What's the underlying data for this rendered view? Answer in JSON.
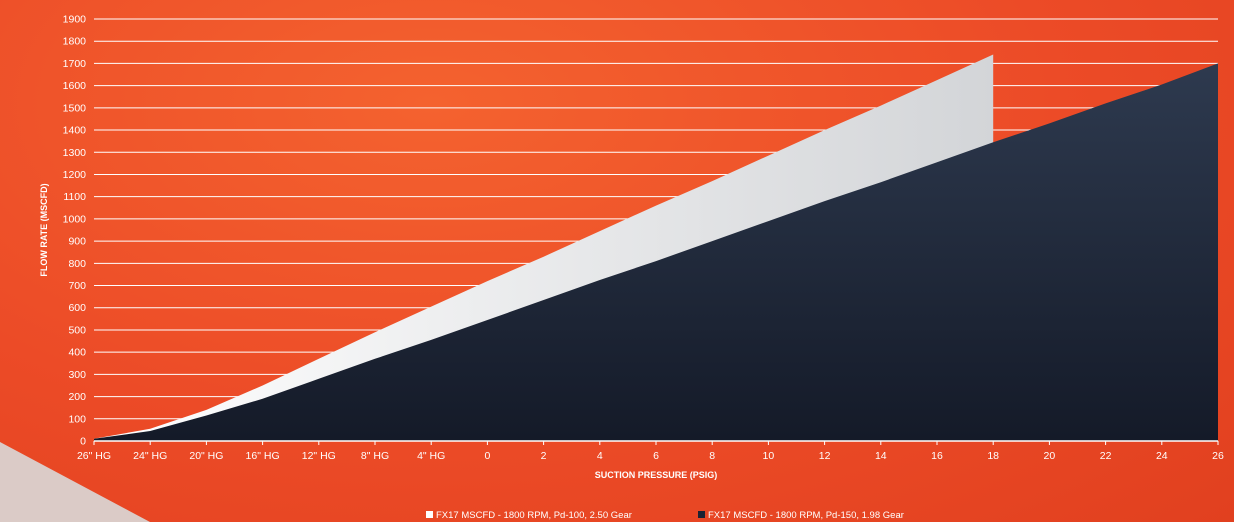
{
  "chart_data": {
    "type": "area",
    "xlabel": "SUCTION PRESSURE (PSIG)",
    "ylabel": "FLOW RATE (MSCFD)",
    "categories": [
      "26\" HG",
      "24\" HG",
      "20\" HG",
      "16\" HG",
      "12\" HG",
      "8\" HG",
      "4\" HG",
      "0",
      "2",
      "4",
      "6",
      "8",
      "10",
      "12",
      "14",
      "16",
      "18",
      "20",
      "22",
      "24",
      "26"
    ],
    "ylim": [
      0,
      1900
    ],
    "yticks": [
      0,
      100,
      200,
      300,
      400,
      500,
      600,
      700,
      800,
      900,
      1000,
      1100,
      1200,
      1300,
      1400,
      1500,
      1600,
      1700,
      1800,
      1900
    ],
    "grid": true,
    "legend_position": "bottom",
    "series": [
      {
        "name": "FX17 MSCFD - 1800 RPM, Pd-100, 2.50 Gear",
        "color": "#ececec",
        "x": [
          "26\" HG",
          "24\" HG",
          "20\" HG",
          "16\" HG",
          "12\" HG",
          "8\" HG",
          "4\" HG",
          "0",
          "2",
          "4",
          "6",
          "8",
          "10",
          "12",
          "14",
          "16",
          "18"
        ],
        "values": [
          10,
          55,
          140,
          250,
          370,
          490,
          605,
          720,
          830,
          945,
          1060,
          1170,
          1285,
          1400,
          1510,
          1625,
          1740
        ]
      },
      {
        "name": "FX17 MSCFD - 1800 RPM, Pd-150, 1.98 Gear",
        "color": "#1b2233",
        "x": [
          "26\" HG",
          "24\" HG",
          "20\" HG",
          "16\" HG",
          "12\" HG",
          "8\" HG",
          "4\" HG",
          "0",
          "2",
          "4",
          "6",
          "8",
          "10",
          "12",
          "14",
          "16",
          "18",
          "20",
          "22",
          "24",
          "26"
        ],
        "values": [
          10,
          45,
          115,
          190,
          280,
          370,
          455,
          545,
          635,
          725,
          810,
          900,
          990,
          1080,
          1165,
          1255,
          1345,
          1430,
          1520,
          1605,
          1700
        ]
      }
    ]
  }
}
